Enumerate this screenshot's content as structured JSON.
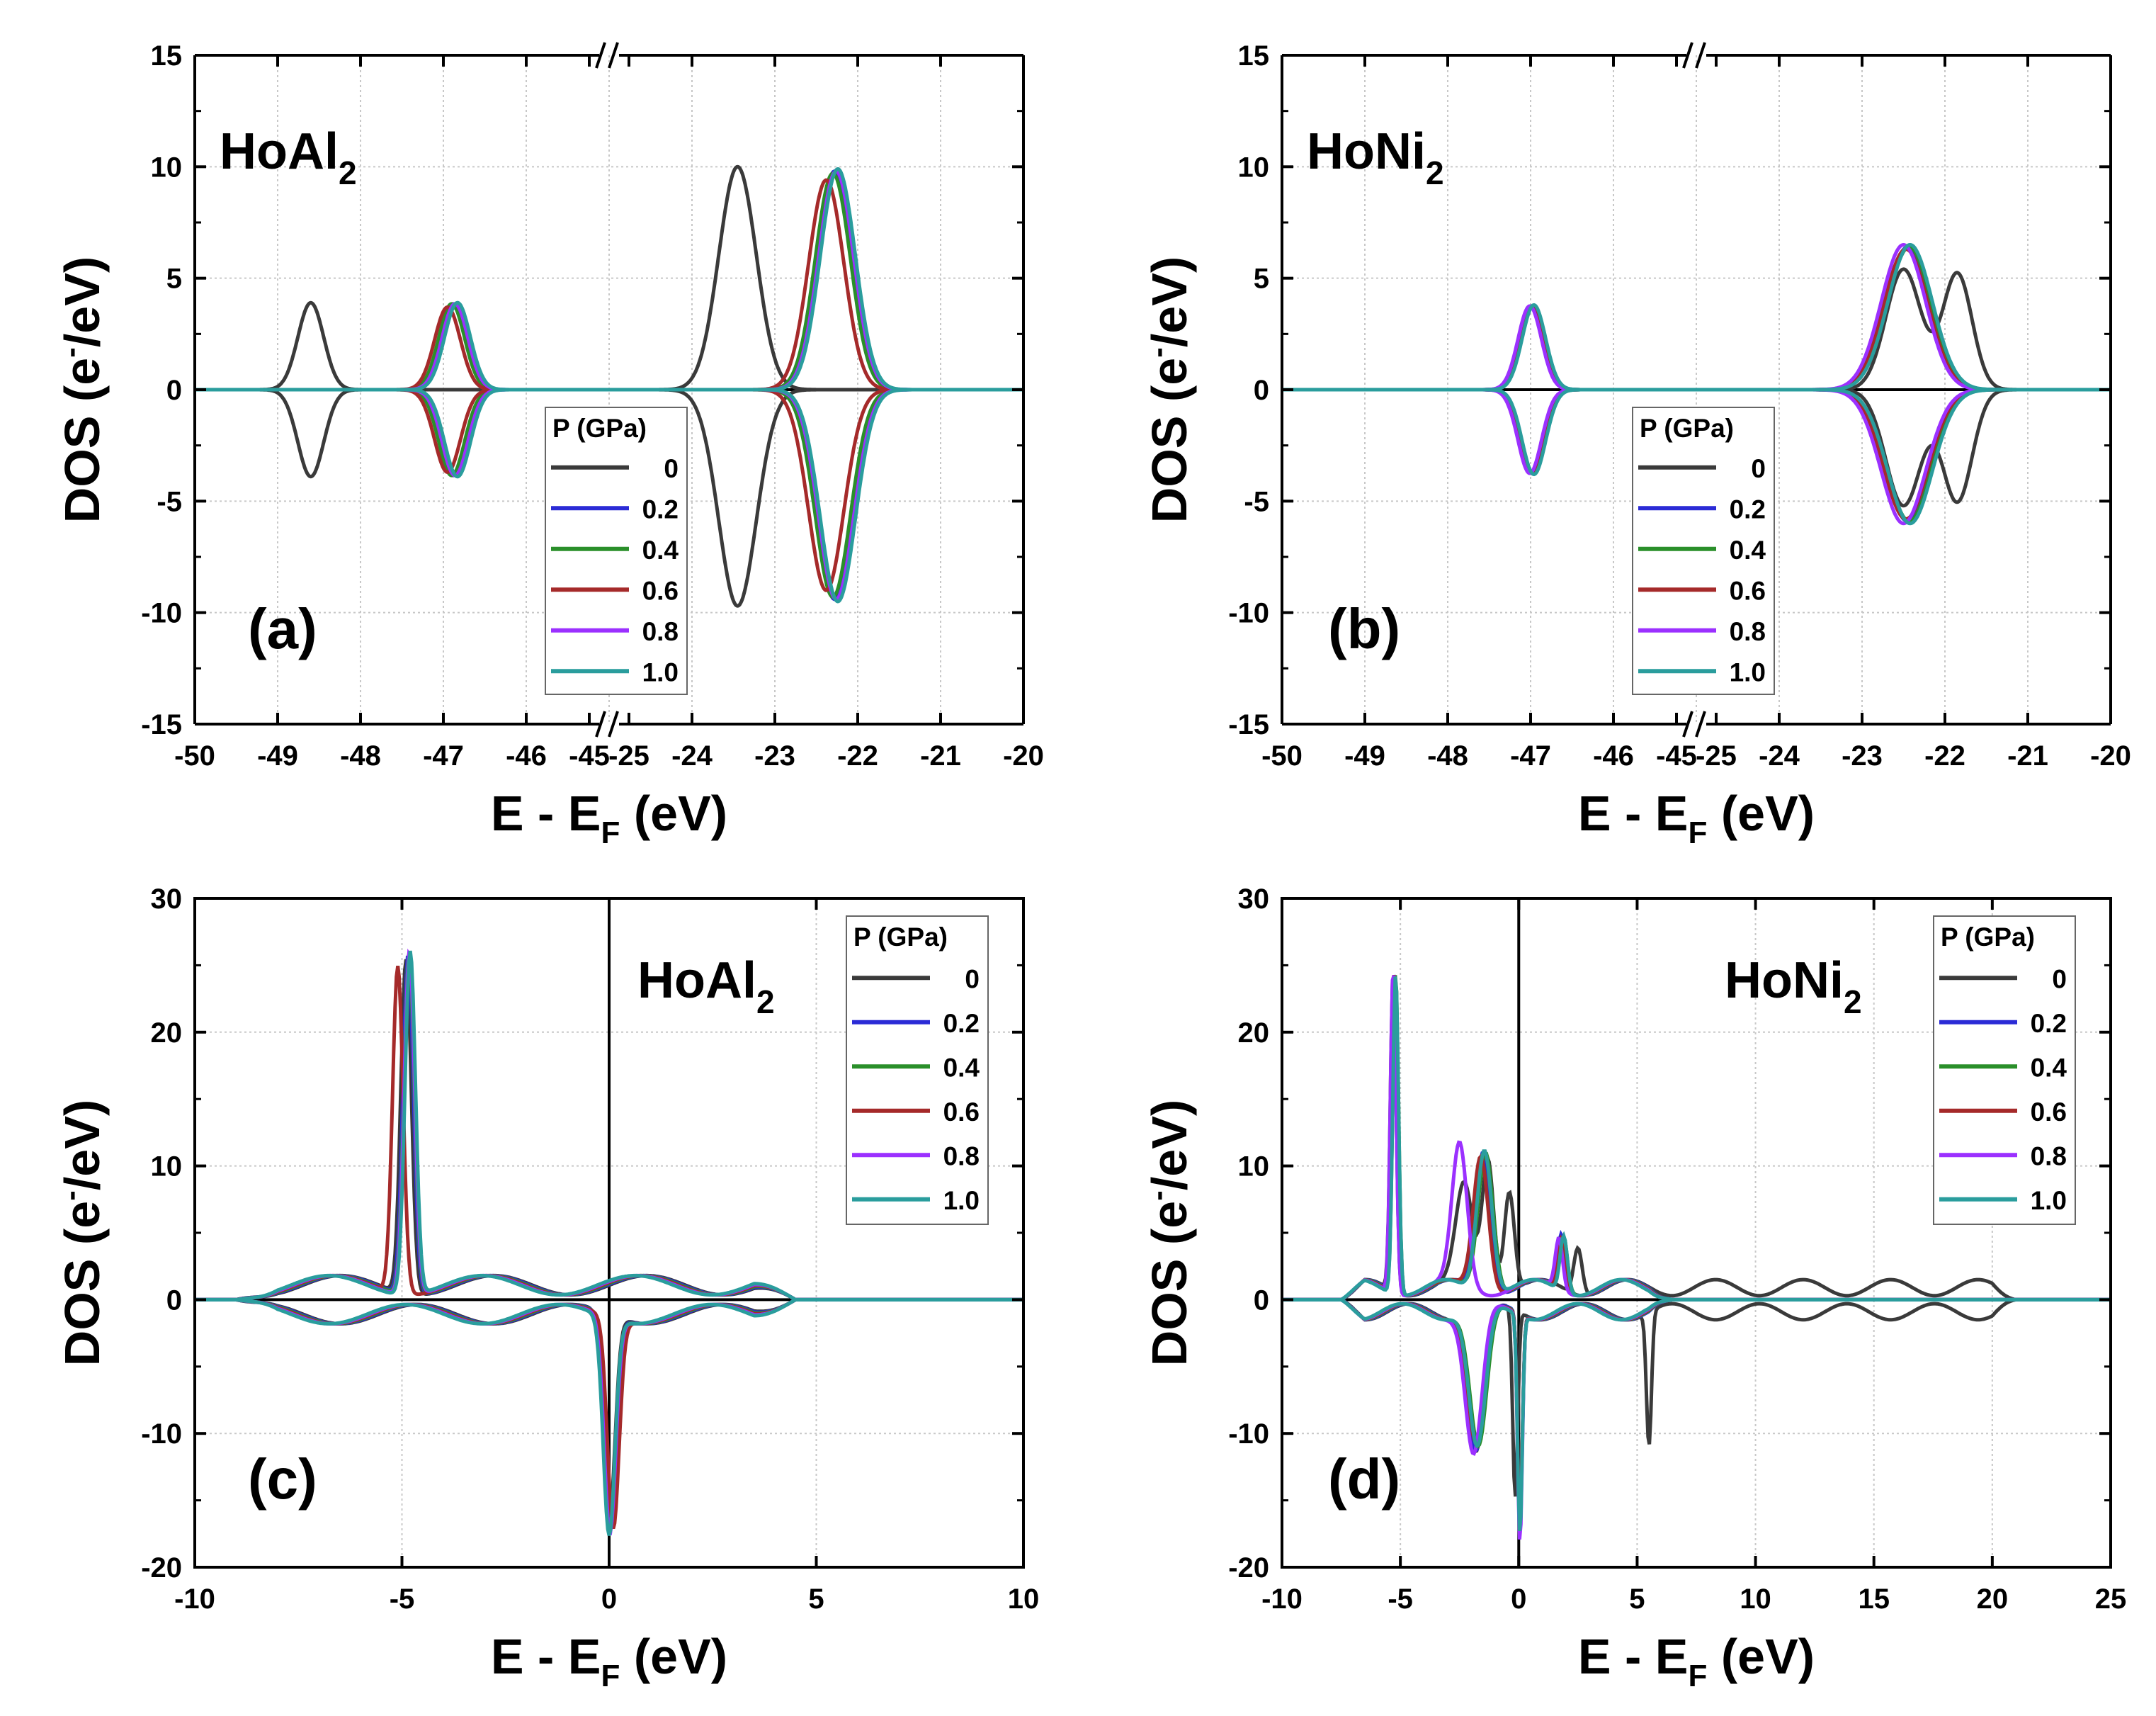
{
  "figure": {
    "series_names": [
      "0",
      "0.2",
      "0.4",
      "0.6",
      "0.8",
      "1.0"
    ],
    "series_colors": [
      "#3a3a3a",
      "#2b2bd6",
      "#2a8f2a",
      "#a52a2a",
      "#9b30ff",
      "#2a9d9d"
    ]
  },
  "chart_data": [
    {
      "panel": "(a)",
      "type": "line",
      "compound": "HoAl",
      "compound_sub": "2",
      "xlabel": "E - E",
      "xlabel_sub": "F",
      "xlabel_unit": " (eV)",
      "ylabel": "DOS (e",
      "ylabel_sup": "-",
      "ylabel_unit": "/eV)",
      "ylim": [
        -15,
        15
      ],
      "yticks": [
        "-15",
        "-10",
        "-5",
        "0",
        "5",
        "10",
        "15"
      ],
      "xticks": [
        "-50",
        "-49",
        "-48",
        "-47",
        "-46",
        "-45",
        "-25",
        "-24",
        "-23",
        "-22",
        "-21",
        "-20"
      ],
      "broken_axis": {
        "left_range": [
          -50,
          -45
        ],
        "right_range": [
          -25,
          -20
        ],
        "break_symbol": "//"
      },
      "legend": {
        "title": "P (GPa)",
        "entries": [
          "0",
          "0.2",
          "0.4",
          "0.6",
          "0.8",
          "1.0"
        ]
      },
      "series": [
        {
          "name": "0",
          "peaks": [
            {
              "x": -48.6,
              "up": 3.9,
              "down": -3.9,
              "width": 0.22
            },
            {
              "x": -23.45,
              "up": 10.0,
              "down": -9.7,
              "width": 0.32
            }
          ]
        },
        {
          "name": "0.2",
          "peaks": [
            {
              "x": -46.88,
              "up": 3.85,
              "down": -3.85,
              "width": 0.22
            },
            {
              "x": -22.28,
              "up": 9.8,
              "down": -9.4,
              "width": 0.3
            }
          ]
        },
        {
          "name": "0.4",
          "peaks": [
            {
              "x": -46.9,
              "up": 3.85,
              "down": -3.85,
              "width": 0.22
            },
            {
              "x": -22.3,
              "up": 9.7,
              "down": -9.3,
              "width": 0.3
            }
          ]
        },
        {
          "name": "0.6",
          "peaks": [
            {
              "x": -46.95,
              "up": 3.7,
              "down": -3.7,
              "width": 0.22
            },
            {
              "x": -22.38,
              "up": 9.4,
              "down": -9.0,
              "width": 0.3
            }
          ]
        },
        {
          "name": "0.8",
          "peaks": [
            {
              "x": -46.86,
              "up": 3.85,
              "down": -3.85,
              "width": 0.22
            },
            {
              "x": -22.26,
              "up": 9.8,
              "down": -9.4,
              "width": 0.3
            }
          ]
        },
        {
          "name": "1.0",
          "peaks": [
            {
              "x": -46.83,
              "up": 3.9,
              "down": -3.9,
              "width": 0.22
            },
            {
              "x": -22.24,
              "up": 9.9,
              "down": -9.5,
              "width": 0.3
            }
          ]
        }
      ]
    },
    {
      "panel": "(b)",
      "type": "line",
      "compound": "HoNi",
      "compound_sub": "2",
      "xlabel": "E - E",
      "xlabel_sub": "F",
      "xlabel_unit": " (eV)",
      "ylabel": "DOS (e",
      "ylabel_sup": "-",
      "ylabel_unit": "/eV)",
      "ylim": [
        -15,
        15
      ],
      "yticks": [
        "-15",
        "-10",
        "-5",
        "0",
        "5",
        "10",
        "15"
      ],
      "xticks": [
        "-50",
        "-49",
        "-48",
        "-47",
        "-46",
        "-45",
        "-25",
        "-24",
        "-23",
        "-22",
        "-21",
        "-20"
      ],
      "broken_axis": {
        "left_range": [
          -50,
          -45
        ],
        "right_range": [
          -25,
          -20
        ],
        "break_symbol": "//"
      },
      "legend": {
        "title": "P (GPa)",
        "entries": [
          "0",
          "0.2",
          "0.4",
          "0.6",
          "0.8",
          "1.0"
        ]
      },
      "series": [
        {
          "name": "0",
          "peaks": [
            {
              "x": -47.0,
              "up": 3.75,
              "down": -3.75,
              "width": 0.2
            },
            {
              "x": -22.5,
              "up": 5.4,
              "down": -5.2,
              "width": 0.3
            },
            {
              "x": -21.85,
              "up": 5.2,
              "down": -5.0,
              "width": 0.25
            }
          ]
        },
        {
          "name": "0.2",
          "peaks": [
            {
              "x": -46.98,
              "up": 3.75,
              "down": -3.75,
              "width": 0.2
            },
            {
              "x": -22.45,
              "up": 6.4,
              "down": -5.9,
              "width": 0.38
            }
          ]
        },
        {
          "name": "0.4",
          "peaks": [
            {
              "x": -46.97,
              "up": 3.75,
              "down": -3.75,
              "width": 0.2
            },
            {
              "x": -22.43,
              "up": 6.4,
              "down": -5.9,
              "width": 0.38
            }
          ]
        },
        {
          "name": "0.6",
          "peaks": [
            {
              "x": -46.99,
              "up": 3.7,
              "down": -3.7,
              "width": 0.2
            },
            {
              "x": -22.47,
              "up": 6.3,
              "down": -5.8,
              "width": 0.38
            }
          ]
        },
        {
          "name": "0.8",
          "peaks": [
            {
              "x": -47.01,
              "up": 3.75,
              "down": -3.75,
              "width": 0.2
            },
            {
              "x": -22.5,
              "up": 6.5,
              "down": -6.0,
              "width": 0.38
            }
          ]
        },
        {
          "name": "1.0",
          "peaks": [
            {
              "x": -46.96,
              "up": 3.8,
              "down": -3.8,
              "width": 0.2
            },
            {
              "x": -22.42,
              "up": 6.5,
              "down": -6.0,
              "width": 0.38
            }
          ]
        }
      ]
    },
    {
      "panel": "(c)",
      "type": "line",
      "compound": "HoAl",
      "compound_sub": "2",
      "xlabel": "E - E",
      "xlabel_sub": "F",
      "xlabel_unit": " (eV)",
      "ylabel": "DOS (e",
      "ylabel_sup": "-",
      "ylabel_unit": "/eV)",
      "xlim": [
        -10,
        10
      ],
      "ylim": [
        -20,
        30
      ],
      "xticks": [
        "-10",
        "-5",
        "0",
        "5",
        "10"
      ],
      "yticks": [
        "-20",
        "-10",
        "0",
        "10",
        "20",
        "30"
      ],
      "legend": {
        "title": "P (GPa)",
        "entries": [
          "0",
          "0.2",
          "0.4",
          "0.6",
          "0.8",
          "1.0"
        ]
      },
      "series": [
        {
          "name": "0",
          "peaks": [
            {
              "x": -4.9,
              "up": 25.0,
              "width": 0.18
            },
            {
              "x": 0.0,
              "down": -15.5,
              "width": 0.2
            }
          ]
        },
        {
          "name": "0.2",
          "peaks": [
            {
              "x": -4.85,
              "up": 25.4,
              "width": 0.18
            },
            {
              "x": 0.02,
              "down": -15.8,
              "width": 0.2
            }
          ]
        },
        {
          "name": "0.4",
          "peaks": [
            {
              "x": -4.83,
              "up": 25.5,
              "width": 0.18
            },
            {
              "x": 0.03,
              "down": -15.9,
              "width": 0.2
            }
          ]
        },
        {
          "name": "0.6",
          "peaks": [
            {
              "x": -5.1,
              "up": 24.5,
              "width": 0.18
            },
            {
              "x": 0.1,
              "down": -15.7,
              "width": 0.2
            }
          ]
        },
        {
          "name": "0.8",
          "peaks": [
            {
              "x": -4.82,
              "up": 25.6,
              "width": 0.18
            },
            {
              "x": 0.02,
              "down": -16.0,
              "width": 0.2
            }
          ]
        },
        {
          "name": "1.0",
          "peaks": [
            {
              "x": -4.8,
              "up": 25.7,
              "width": 0.18
            },
            {
              "x": 0.0,
              "down": -16.2,
              "width": 0.2
            }
          ]
        }
      ]
    },
    {
      "panel": "(d)",
      "type": "line",
      "compound": "HoNi",
      "compound_sub": "2",
      "xlabel": "E - E",
      "xlabel_sub": "F",
      "xlabel_unit": " (eV)",
      "ylabel": "DOS (e",
      "ylabel_sup": "-",
      "ylabel_unit": "/eV)",
      "xlim": [
        -10,
        25
      ],
      "ylim": [
        -20,
        30
      ],
      "xticks": [
        "-10",
        "-5",
        "0",
        "5",
        "10",
        "15",
        "20",
        "25"
      ],
      "yticks": [
        "-20",
        "-10",
        "0",
        "10",
        "20",
        "30"
      ],
      "legend": {
        "title": "P (GPa)",
        "entries": [
          "0",
          "0.2",
          "0.4",
          "0.6",
          "0.8",
          "1.0"
        ]
      },
      "series": [
        {
          "name": "0",
          "peaks": [
            {
              "x": -5.3,
              "up": 24.0,
              "width": 0.17
            },
            {
              "x": -2.3,
              "up": 7.5,
              "width": 0.5
            },
            {
              "x": -1.3,
              "up": 10.0,
              "width": 0.35
            },
            {
              "x": -0.4,
              "up": 7.5,
              "width": 0.3
            },
            {
              "x": 2.5,
              "up": 3.5,
              "width": 0.25
            },
            {
              "x": -1.8,
              "down": -10.5,
              "width": 0.5
            },
            {
              "x": -0.15,
              "down": -14.0,
              "width": 0.15
            },
            {
              "x": 5.5,
              "down": -10.0,
              "width": 0.15
            }
          ]
        },
        {
          "name": "0.2",
          "peaks": [
            {
              "x": -5.25,
              "up": 24.2,
              "width": 0.17
            },
            {
              "x": -1.5,
              "up": 10.5,
              "width": 0.45
            },
            {
              "x": 1.8,
              "up": 4.0,
              "width": 0.22
            },
            {
              "x": -1.8,
              "down": -10.5,
              "width": 0.5
            },
            {
              "x": 0.05,
              "down": -16.0,
              "width": 0.14
            }
          ]
        },
        {
          "name": "0.4",
          "peaks": [
            {
              "x": -5.2,
              "up": 24.0,
              "width": 0.17
            },
            {
              "x": -1.4,
              "up": 10.6,
              "width": 0.45
            },
            {
              "x": 1.9,
              "up": 4.0,
              "width": 0.22
            },
            {
              "x": -1.7,
              "down": -10.3,
              "width": 0.5
            },
            {
              "x": 0.05,
              "down": -15.8,
              "width": 0.14
            }
          ]
        },
        {
          "name": "0.6",
          "peaks": [
            {
              "x": -5.28,
              "up": 23.8,
              "width": 0.17
            },
            {
              "x": -1.6,
              "up": 10.2,
              "width": 0.45
            },
            {
              "x": 1.8,
              "up": 3.8,
              "width": 0.22
            },
            {
              "x": -1.8,
              "down": -10.0,
              "width": 0.5
            },
            {
              "x": 0.05,
              "down": -15.5,
              "width": 0.14
            }
          ]
        },
        {
          "name": "0.8",
          "peaks": [
            {
              "x": -5.3,
              "up": 24.3,
              "width": 0.17
            },
            {
              "x": -2.5,
              "up": 10.5,
              "width": 0.45
            },
            {
              "x": 1.7,
              "up": 3.8,
              "width": 0.22
            },
            {
              "x": -1.9,
              "down": -10.8,
              "width": 0.5
            },
            {
              "x": 0.05,
              "down": -17.0,
              "width": 0.14
            }
          ]
        },
        {
          "name": "1.0",
          "peaks": [
            {
              "x": -5.2,
              "up": 24.0,
              "width": 0.17
            },
            {
              "x": -1.45,
              "up": 10.8,
              "width": 0.45
            },
            {
              "x": 1.9,
              "up": 4.2,
              "width": 0.22
            },
            {
              "x": -1.75,
              "down": -10.4,
              "width": 0.5
            },
            {
              "x": 0.05,
              "down": -16.3,
              "width": 0.14
            }
          ]
        }
      ]
    }
  ]
}
